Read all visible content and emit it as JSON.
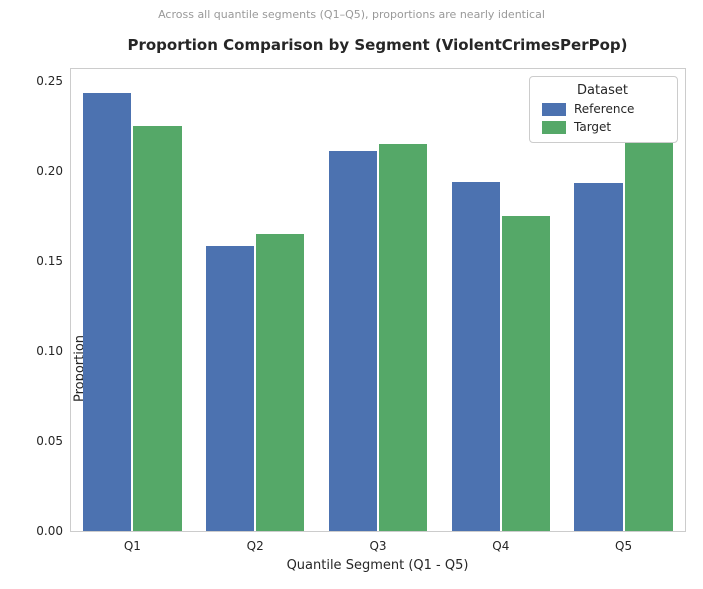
{
  "suptitle": "Across all quantile segments (Q1–Q5), proportions are nearly identical",
  "title": "Proportion Comparison by Segment (ViolentCrimesPerPop)",
  "chart_data": {
    "type": "bar",
    "categories": [
      "Q1",
      "Q2",
      "Q3",
      "Q4",
      "Q5"
    ],
    "series": [
      {
        "name": "Reference",
        "color": "#4C72B0",
        "values": [
          0.243,
          0.158,
          0.211,
          0.194,
          0.193
        ]
      },
      {
        "name": "Target",
        "color": "#55A868",
        "values": [
          0.225,
          0.165,
          0.215,
          0.175,
          0.22
        ]
      }
    ],
    "title": "Proportion Comparison by Segment (ViolentCrimesPerPop)",
    "xlabel": "Quantile Segment (Q1 - Q5)",
    "ylabel": "Proportion",
    "ylim": [
      0,
      0.2565
    ],
    "yticks": [
      0.0,
      0.05,
      0.1,
      0.15,
      0.2,
      0.25
    ],
    "grid": false,
    "legend_title": "Dataset",
    "legend_position": "upper right"
  }
}
